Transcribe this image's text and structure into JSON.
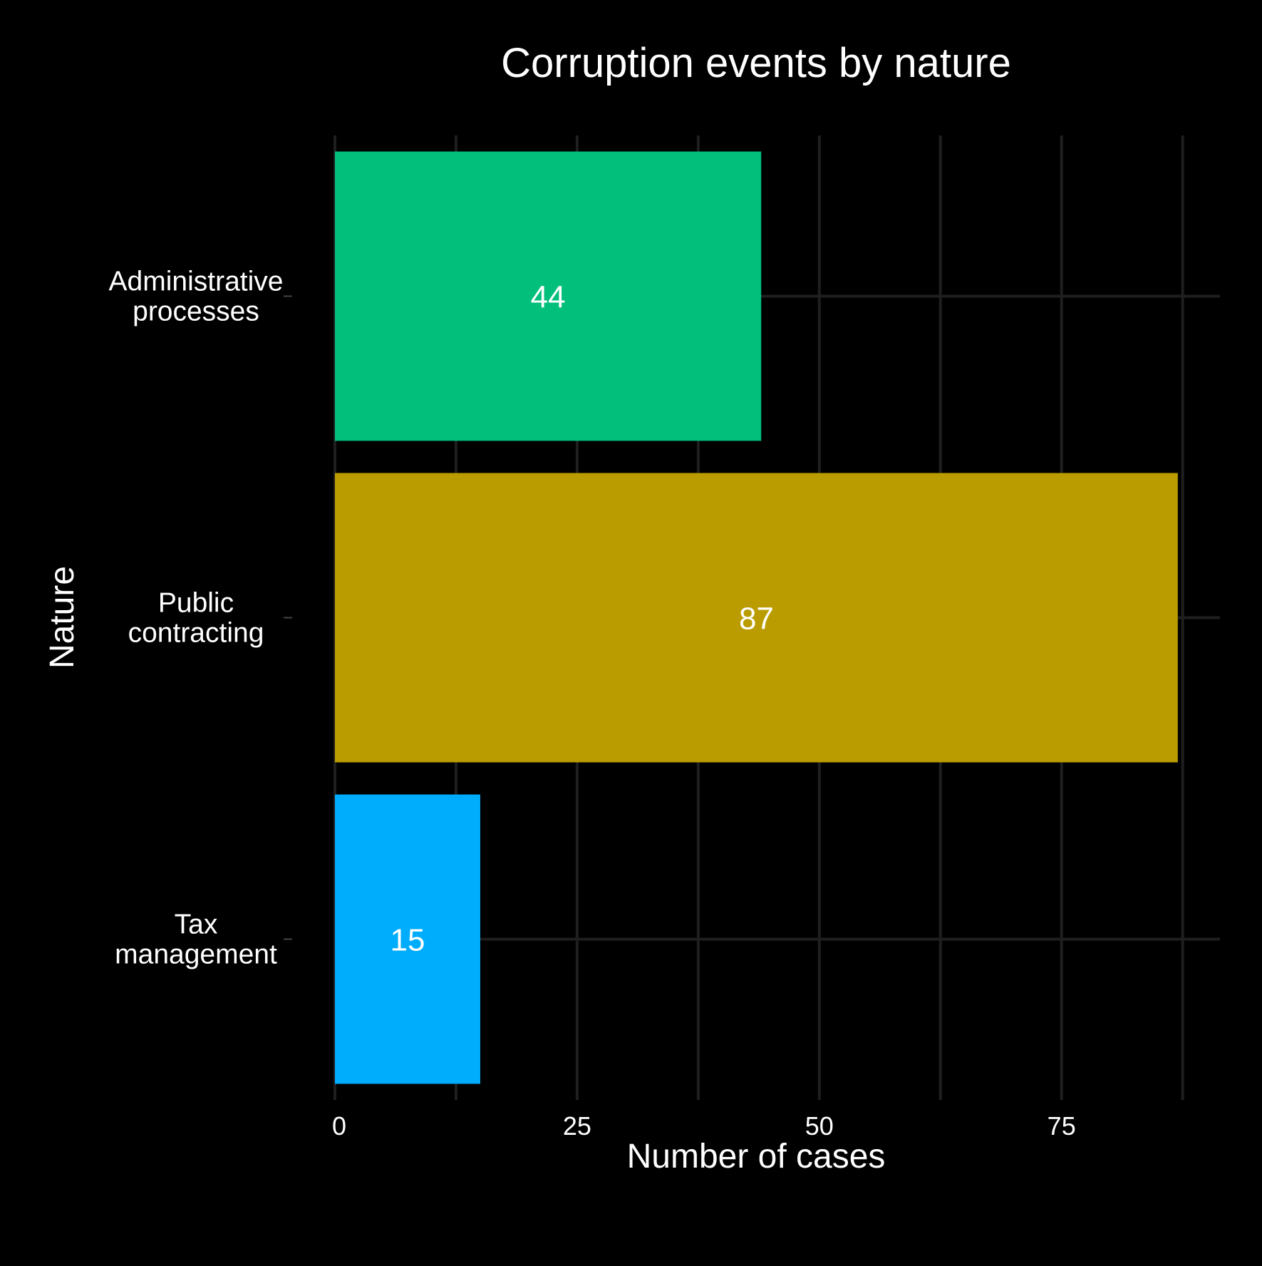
{
  "chart_data": {
    "type": "bar",
    "orientation": "horizontal",
    "title": "Corruption events by nature",
    "xlabel": "Number of cases",
    "ylabel": "Nature",
    "categories": [
      [
        "Administrative",
        "processes"
      ],
      [
        "Public",
        "contracting"
      ],
      [
        "Tax",
        "management"
      ]
    ],
    "values": [
      44,
      87,
      15
    ],
    "data_labels": [
      "44",
      "87",
      "15"
    ],
    "colors": [
      "#02BF7B",
      "#BA9C00",
      "#00ACFC"
    ],
    "xlim": [
      0,
      91.35
    ],
    "x_ticks": [
      0,
      25,
      50,
      75
    ],
    "x_tick_labels": [
      "0",
      "25",
      "50",
      "75"
    ],
    "x_minor_gridlines": [
      12.5,
      37.5,
      62.5,
      87.5
    ],
    "grid": true,
    "legend": "none",
    "background": "#000000",
    "grid_color": "#1F1F1F",
    "text_color": "#FFFFFF"
  }
}
